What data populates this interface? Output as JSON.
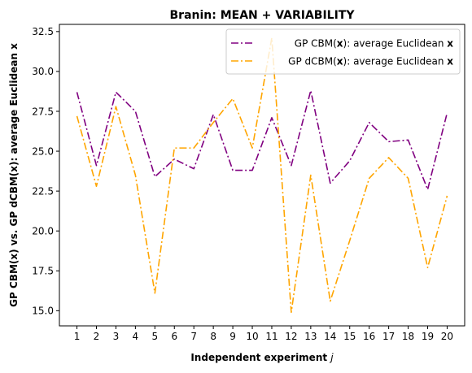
{
  "chart_data": {
    "type": "line",
    "title": "Branin: MEAN + VARIABILITY",
    "xlabel": "Independent experiment",
    "xlabel_var": "j",
    "ylabel": "GP CBM(x) vs. GP dCBM(x): average Euclidean x",
    "x": [
      1,
      2,
      3,
      4,
      5,
      6,
      7,
      8,
      9,
      10,
      11,
      12,
      13,
      14,
      15,
      16,
      17,
      18,
      19,
      20
    ],
    "xlim": [
      0.1,
      20.9
    ],
    "ylim": [
      14.05,
      32.95
    ],
    "yticks": [
      "15.0",
      "17.5",
      "20.0",
      "22.5",
      "25.0",
      "27.5",
      "30.0",
      "32.5"
    ],
    "ytick_values": [
      15.0,
      17.5,
      20.0,
      22.5,
      25.0,
      27.5,
      30.0,
      32.5
    ],
    "legend_position": "upper right",
    "series": [
      {
        "name_pre": "GP CBM(",
        "name_bold": "x",
        "name_mid": "): average Euclidean ",
        "name_end": "x",
        "color": "#800080",
        "linestyle": "dashdot",
        "values": [
          28.7,
          24.1,
          28.7,
          27.5,
          23.4,
          24.5,
          23.9,
          27.3,
          23.8,
          23.8,
          27.1,
          24.1,
          28.8,
          23.0,
          24.4,
          26.8,
          25.6,
          25.7,
          22.6,
          27.4
        ]
      },
      {
        "name_pre": "GP dCBM(",
        "name_bold": "x",
        "name_mid": "): average Euclidean ",
        "name_end": "x",
        "color": "#FFA500",
        "linestyle": "dashdot",
        "values": [
          27.2,
          22.8,
          27.8,
          23.5,
          16.1,
          25.2,
          25.2,
          26.8,
          28.3,
          25.2,
          32.1,
          14.9,
          23.5,
          15.6,
          19.4,
          23.3,
          24.6,
          23.3,
          17.7,
          22.2
        ]
      }
    ]
  }
}
